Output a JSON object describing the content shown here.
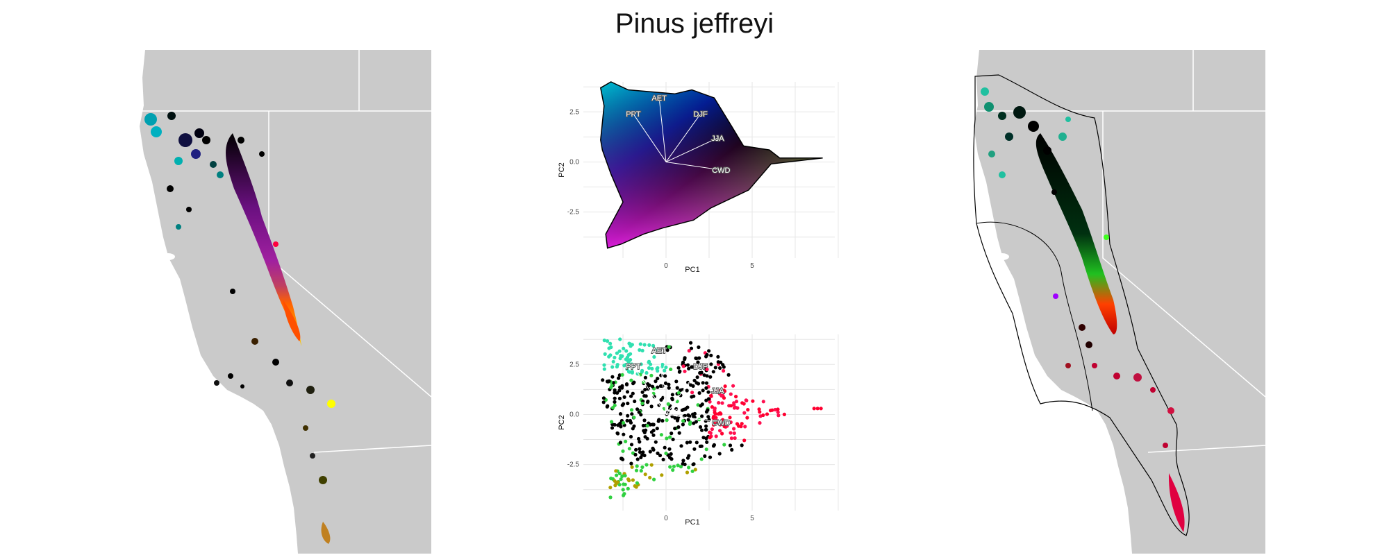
{
  "title": "Pinus jeffreyi",
  "colors": {
    "land": "#cacaca",
    "border": "#ffffff",
    "grid": "#e6e6e6",
    "hull": "#000000"
  },
  "chart_data": [
    {
      "type": "map",
      "panel": "left",
      "description_colors": [
        "#00b0b0",
        "#1010a0",
        "#8000a0",
        "#000000",
        "#60ff00",
        "#ffff00",
        "#ff3000"
      ]
    },
    {
      "type": "scatter",
      "panel": "pca-top",
      "xlabel": "PC1",
      "ylabel": "PC2",
      "xlim": [
        -4.8,
        9.8
      ],
      "ylim": [
        -4.8,
        4.0
      ],
      "xticks": [
        0,
        5
      ],
      "yticks": [
        -2.5,
        0.0,
        2.5
      ],
      "ytick_labels": [
        "-2.5",
        "0.0",
        "2.5"
      ],
      "hull": [
        [
          -3.8,
          3.7
        ],
        [
          -3.2,
          4.0
        ],
        [
          -2.2,
          3.6
        ],
        [
          0.5,
          3.4
        ],
        [
          1.5,
          3.6
        ],
        [
          2.8,
          3.2
        ],
        [
          3.8,
          1.8
        ],
        [
          4.5,
          0.8
        ],
        [
          6.0,
          0.6
        ],
        [
          6.6,
          0.2
        ],
        [
          9.1,
          0.2
        ],
        [
          6.1,
          -0.1
        ],
        [
          4.8,
          -1.4
        ],
        [
          2.6,
          -2.3
        ],
        [
          1.6,
          -2.9
        ],
        [
          -0.2,
          -3.3
        ],
        [
          -1.3,
          -3.6
        ],
        [
          -2.6,
          -4.1
        ],
        [
          -3.4,
          -4.3
        ],
        [
          -3.5,
          -3.6
        ],
        [
          -2.5,
          -2.0
        ],
        [
          -3.2,
          -0.6
        ],
        [
          -3.7,
          0.6
        ],
        [
          -3.8,
          1.1
        ],
        [
          -3.6,
          2.8
        ]
      ],
      "loadings": [
        {
          "label": "PPT",
          "x": -1.9,
          "y": 2.4
        },
        {
          "label": "AET",
          "x": -0.4,
          "y": 3.2
        },
        {
          "label": "DJF",
          "x": 2.0,
          "y": 2.4
        },
        {
          "label": "JJA",
          "x": 3.0,
          "y": 1.2
        },
        {
          "label": "CWD",
          "x": 3.2,
          "y": -0.4
        }
      ]
    },
    {
      "type": "scatter",
      "panel": "pca-bottom",
      "xlabel": "PC1",
      "ylabel": "PC2",
      "xlim": [
        -4.8,
        9.8
      ],
      "ylim": [
        -4.8,
        4.0
      ],
      "xticks": [
        0,
        5
      ],
      "yticks": [
        -2.5,
        0.0,
        2.5
      ],
      "ytick_labels": [
        "-2.5",
        "0.0",
        "2.5"
      ],
      "point_colors": [
        "#30e0b0",
        "#000000",
        "#ff1050",
        "#30d040",
        "#b0a000",
        "#ff0030"
      ],
      "loadings": [
        {
          "label": "PPT",
          "x": -1.9,
          "y": 2.4
        },
        {
          "label": "AET",
          "x": -0.4,
          "y": 3.2
        },
        {
          "label": "DJF",
          "x": 2.0,
          "y": 2.4
        },
        {
          "label": "JJA",
          "x": 3.0,
          "y": 1.2
        },
        {
          "label": "CWD",
          "x": 3.2,
          "y": -0.4
        }
      ]
    },
    {
      "type": "map",
      "panel": "right",
      "description_colors": [
        "#20c0a0",
        "#003020",
        "#000000",
        "#40ff20",
        "#ff2000",
        "#c00030",
        "#a000ff"
      ]
    }
  ]
}
